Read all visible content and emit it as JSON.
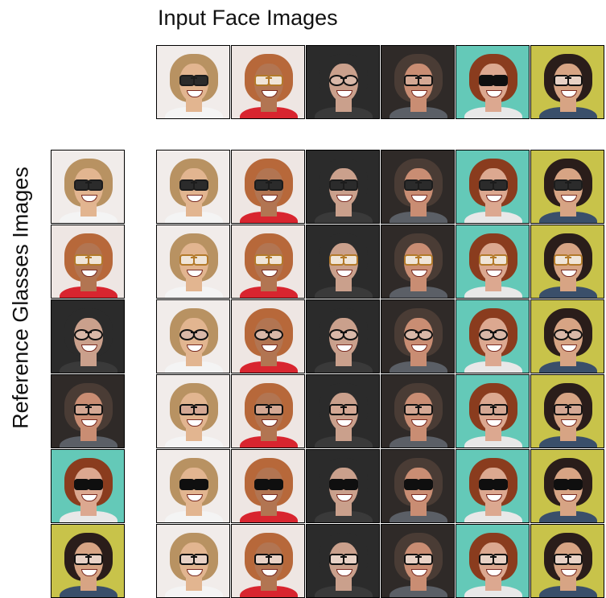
{
  "top_label": "Input Face Images",
  "left_label": "Reference Glasses Images",
  "input_faces": [
    {
      "id": "f1",
      "bg": "#f1ecea",
      "hair": "#b89262",
      "skin": "#e2b590",
      "shirt": "#f4f4f4"
    },
    {
      "id": "f2",
      "bg": "#eee6e3",
      "hair": "#b7683a",
      "skin": "#b27552",
      "shirt": "#d8252f"
    },
    {
      "id": "f3",
      "bg": "#2b2b2b",
      "hair": "#2b2b2b",
      "skin": "#caa08c",
      "shirt": "#3a3a3a"
    },
    {
      "id": "f4",
      "bg": "#2f2a28",
      "hair": "#4a3c35",
      "skin": "#c98d73",
      "shirt": "#5b5f66"
    },
    {
      "id": "f5",
      "bg": "#64c9b8",
      "hair": "#8a3c1e",
      "skin": "#dca890",
      "shirt": "#e8e8e8"
    },
    {
      "id": "f6",
      "bg": "#c8c34a",
      "hair": "#2a1d1a",
      "skin": "#d7a484",
      "shirt": "#3a4f6a"
    }
  ],
  "reference_glasses": [
    {
      "id": "g1",
      "style": "sunglasses",
      "frame": "#1c1c1c",
      "lens": "#2b2b2b"
    },
    {
      "id": "g2",
      "style": "clear",
      "frame": "#b37a2a",
      "lens": "#f0e5d8"
    },
    {
      "id": "g3",
      "style": "round",
      "frame": "#121212",
      "lens": "#d9b8a8"
    },
    {
      "id": "g4",
      "style": "rect",
      "frame": "#111111",
      "lens": "#d4a894"
    },
    {
      "id": "g5",
      "style": "sunglasses",
      "frame": "#0f0f0f",
      "lens": "#0f0f0f"
    },
    {
      "id": "g6",
      "style": "rect",
      "frame": "#101010",
      "lens": "#e8d2c6"
    }
  ],
  "colors": {
    "border": "#000000",
    "text": "#111111",
    "background": "#ffffff"
  }
}
